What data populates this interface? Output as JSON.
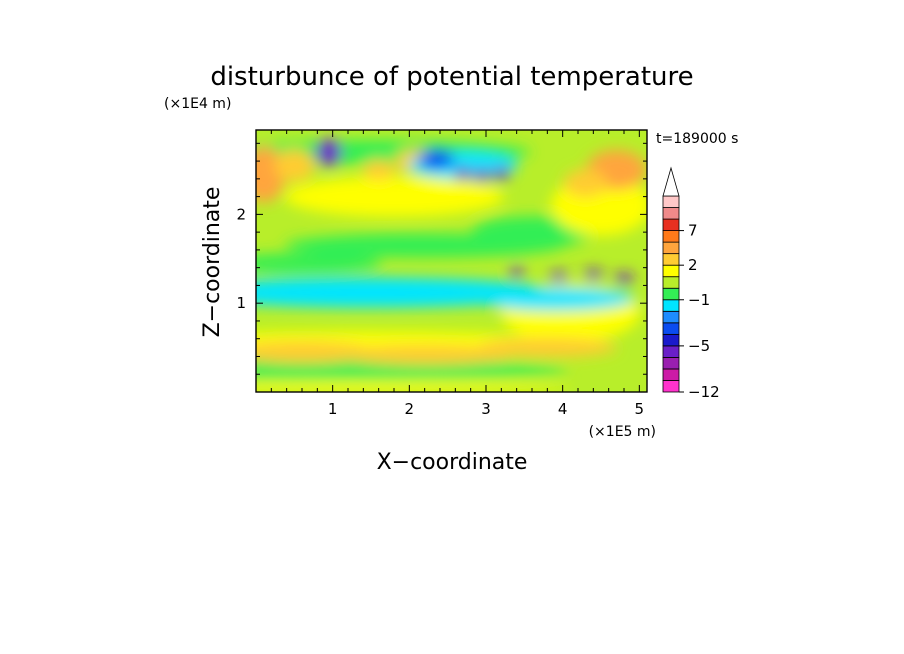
{
  "chart_data": {
    "type": "heatmap",
    "title": "disturbunce of potential temperature",
    "xlabel": "X−coordinate",
    "ylabel": "Z−coordinate",
    "x_unit": "(×1E5 m)",
    "y_unit": "(×1E4 m)",
    "time_label": "t=189000 s",
    "xlim": [
      0,
      5.1
    ],
    "ylim": [
      0,
      2.95
    ],
    "x_ticks": [
      "1",
      "2",
      "3",
      "4",
      "5"
    ],
    "y_ticks": [
      "1",
      "2"
    ],
    "colorbar": {
      "levels": [
        -12,
        -10,
        -8,
        -6,
        -5,
        -4,
        -3,
        -2,
        -1,
        0,
        1,
        2,
        3,
        5,
        7,
        9,
        11
      ],
      "labels": [
        "7",
        "2",
        "−1",
        "−5",
        "−12"
      ],
      "colors": [
        "#ff33cc",
        "#cc1aa6",
        "#9a1fb0",
        "#6a1fc8",
        "#1a1acc",
        "#0a4cf0",
        "#1e8cff",
        "#00e5ff",
        "#33ee55",
        "#b8ee2a",
        "#ffff00",
        "#ffcc33",
        "#ffa53d",
        "#ff7a1a",
        "#e83020",
        "#f08a8a",
        "#ffc8c8"
      ]
    },
    "features": [
      {
        "region": "broad cyan band",
        "x": [
          0.05,
          3.0
        ],
        "z": [
          0.85,
          1.4
        ],
        "value": -1
      },
      {
        "region": "warm layer",
        "x": [
          0.0,
          5.1
        ],
        "z": [
          0.3,
          0.65
        ],
        "value": 2
      },
      {
        "region": "cold cells",
        "x": [
          2.4,
          3.4
        ],
        "z": [
          2.4,
          2.6
        ],
        "value": -5
      },
      {
        "region": "cold filaments",
        "x": [
          3.1,
          5.0
        ],
        "z": [
          1.1,
          1.4
        ],
        "value": -5
      },
      {
        "region": "warm upper-left",
        "x": [
          0.0,
          0.7
        ],
        "z": [
          2.2,
          2.8
        ],
        "value": 5
      },
      {
        "region": "warm upper-right",
        "x": [
          4.2,
          4.9
        ],
        "z": [
          2.3,
          2.8
        ],
        "value": 5
      }
    ]
  }
}
